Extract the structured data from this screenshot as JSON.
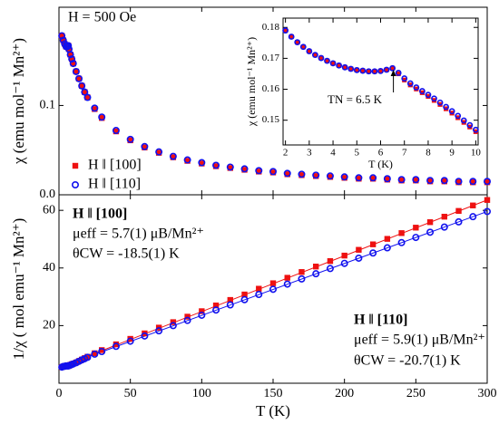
{
  "chart_data": [
    {
      "type": "scatter",
      "ylabel": "χ (emu mol⁻¹ Mn²⁺)",
      "annotations": [
        "H = 500 Oe"
      ],
      "xlim": [
        0,
        300
      ],
      "xticks": [
        0,
        50,
        100,
        150,
        200,
        250,
        300
      ],
      "ylim": [
        0,
        0.21
      ],
      "yticks": [
        {
          "value": 0,
          "label": "0.0"
        },
        0.1
      ],
      "legend": "lower left",
      "x": [
        2,
        3,
        4,
        5,
        6,
        6.5,
        7,
        8,
        9,
        10,
        12,
        14,
        16,
        18,
        20,
        25,
        30,
        40,
        50,
        60,
        70,
        80,
        90,
        100,
        110,
        120,
        130,
        140,
        150,
        160,
        170,
        180,
        190,
        200,
        210,
        220,
        230,
        240,
        250,
        260,
        270,
        280,
        290,
        300
      ],
      "series": [
        {
          "name": "H ‖ [100]",
          "color": "#ee1111",
          "marker": "square",
          "values": [
            0.178,
            0.173,
            0.169,
            0.166,
            0.166,
            0.167,
            0.163,
            0.157,
            0.152,
            0.147,
            0.138,
            0.13,
            0.122,
            0.115,
            0.109,
            0.096,
            0.086,
            0.071,
            0.061,
            0.053,
            0.047,
            0.042,
            0.038,
            0.035,
            0.032,
            0.03,
            0.028,
            0.026,
            0.025,
            0.023,
            0.022,
            0.021,
            0.02,
            0.019,
            0.018,
            0.018,
            0.017,
            0.016,
            0.016,
            0.015,
            0.015,
            0.014,
            0.014,
            0.014
          ]
        },
        {
          "name": "H ‖ [110]",
          "color": "#1111ee",
          "marker": "circle",
          "values": [
            0.178,
            0.173,
            0.169,
            0.166,
            0.166,
            0.167,
            0.163,
            0.157,
            0.152,
            0.147,
            0.138,
            0.13,
            0.122,
            0.115,
            0.109,
            0.097,
            0.087,
            0.072,
            0.062,
            0.054,
            0.048,
            0.043,
            0.039,
            0.036,
            0.033,
            0.031,
            0.029,
            0.027,
            0.026,
            0.024,
            0.023,
            0.022,
            0.021,
            0.02,
            0.019,
            0.019,
            0.018,
            0.017,
            0.017,
            0.016,
            0.016,
            0.015,
            0.015,
            0.015
          ]
        }
      ]
    },
    {
      "type": "scatter",
      "xlabel": "T (K)",
      "ylabel": "χ (emu mol⁻¹ Mn²⁺)",
      "annotations": [
        "TN = 6.5 K"
      ],
      "xlim": [
        1.9,
        10.1
      ],
      "xticks": [
        2,
        3,
        4,
        5,
        6,
        7,
        8,
        9,
        10
      ],
      "ylim": [
        0.142,
        0.183
      ],
      "yticks": [
        0.15,
        0.16,
        0.17,
        0.18
      ],
      "x": [
        2,
        2.25,
        2.5,
        2.75,
        3,
        3.25,
        3.5,
        3.75,
        4,
        4.25,
        4.5,
        4.75,
        5,
        5.25,
        5.5,
        5.75,
        6,
        6.25,
        6.5,
        6.75,
        7,
        7.25,
        7.5,
        7.75,
        8,
        8.25,
        8.5,
        8.75,
        9,
        9.25,
        9.5,
        9.75,
        10
      ],
      "series": [
        {
          "color": "#ee1111",
          "marker": "square",
          "values": [
            0.179,
            0.177,
            0.1752,
            0.1737,
            0.1723,
            0.1711,
            0.1701,
            0.1692,
            0.1684,
            0.1677,
            0.1671,
            0.1666,
            0.1662,
            0.166,
            0.1658,
            0.1658,
            0.1659,
            0.1663,
            0.1668,
            0.165,
            0.163,
            0.1614,
            0.1601,
            0.1589,
            0.1577,
            0.1564,
            0.1551,
            0.1537,
            0.1523,
            0.1508,
            0.1493,
            0.1478,
            0.1463
          ]
        },
        {
          "color": "#1111ee",
          "marker": "circle",
          "values": [
            0.179,
            0.177,
            0.1752,
            0.1737,
            0.1723,
            0.1711,
            0.1701,
            0.1692,
            0.1684,
            0.1677,
            0.1671,
            0.1666,
            0.1662,
            0.166,
            0.1658,
            0.1658,
            0.1659,
            0.1663,
            0.1668,
            0.1653,
            0.1635,
            0.1619,
            0.1606,
            0.1594,
            0.1582,
            0.157,
            0.1557,
            0.1543,
            0.1529,
            0.1514,
            0.1499,
            0.1484,
            0.1469
          ]
        }
      ]
    },
    {
      "type": "scatter",
      "xlabel": "T (K)",
      "ylabel": "1/χ ( mol emu⁻¹ Mn²⁺)",
      "annotations": [
        "H ‖ [100]",
        "μeff = 5.7(1) μB/Mn²⁺",
        "θCW = -18.5(1) K",
        "H ‖ [110]",
        "μeff = 5.9(1) μB/Mn²⁺",
        "θCW = -20.7(1) K"
      ],
      "xlim": [
        0,
        300
      ],
      "xticks": [
        0,
        50,
        100,
        150,
        200,
        250,
        300
      ],
      "ylim": [
        0,
        65.4
      ],
      "yticks": [
        20,
        40,
        60
      ],
      "x": [
        2,
        3,
        4,
        5,
        6,
        6.5,
        7,
        8,
        9,
        10,
        12,
        14,
        16,
        18,
        20,
        25,
        30,
        40,
        50,
        60,
        70,
        80,
        90,
        100,
        110,
        120,
        130,
        140,
        150,
        160,
        170,
        180,
        190,
        200,
        210,
        220,
        230,
        240,
        250,
        260,
        270,
        280,
        290,
        300
      ],
      "series": [
        {
          "color": "#ee1111",
          "marker": "square",
          "values": [
            5.6,
            5.8,
            5.9,
            6.0,
            6.0,
            6.0,
            6.1,
            6.4,
            6.6,
            6.8,
            7.2,
            7.7,
            8.2,
            8.7,
            9.2,
            10.4,
            11.5,
            13.5,
            15.4,
            17.3,
            19.3,
            21.2,
            23.1,
            25.0,
            27.0,
            28.9,
            30.8,
            32.8,
            34.7,
            36.6,
            38.6,
            40.5,
            42.4,
            44.3,
            46.3,
            48.2,
            50.1,
            52.1,
            54.0,
            55.9,
            57.8,
            59.8,
            61.7,
            63.6
          ]
        },
        {
          "color": "#1111ee",
          "marker": "circle",
          "values": [
            5.6,
            5.8,
            5.9,
            6.0,
            6.0,
            6.0,
            6.1,
            6.3,
            6.5,
            6.7,
            7.1,
            7.6,
            8.1,
            8.5,
            9.0,
            10.1,
            11.0,
            12.8,
            14.6,
            16.4,
            18.2,
            20.0,
            21.8,
            23.6,
            25.4,
            27.2,
            29.0,
            30.8,
            32.6,
            34.4,
            36.2,
            38.0,
            39.8,
            41.6,
            43.4,
            45.2,
            47.0,
            48.8,
            50.6,
            52.4,
            54.2,
            56.0,
            57.8,
            59.6
          ]
        }
      ],
      "fits": [
        {
          "color": "#ee1111",
          "x": [
            0,
            300
          ],
          "values": [
            5.5,
            63.6
          ]
        },
        {
          "color": "#1111ee",
          "x": [
            0,
            300
          ],
          "values": [
            5.5,
            59.6
          ]
        }
      ]
    }
  ]
}
